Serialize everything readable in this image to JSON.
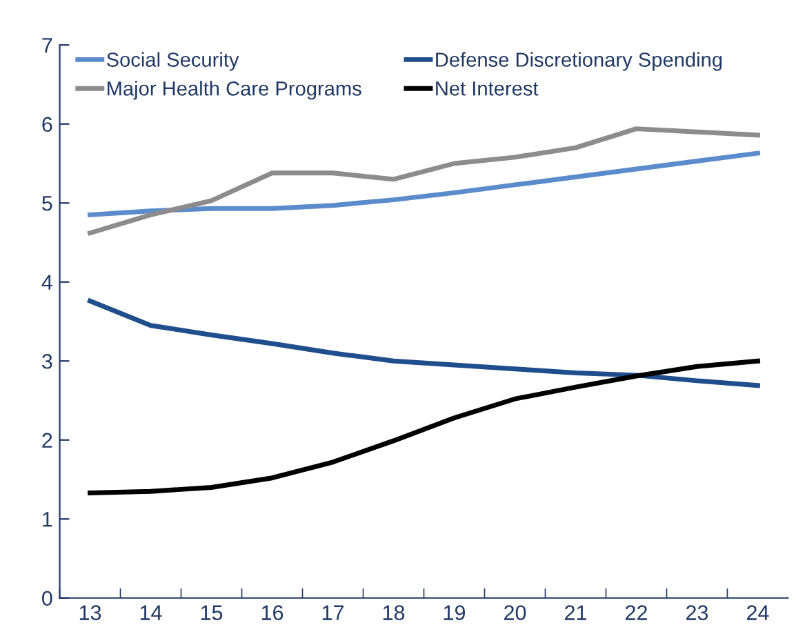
{
  "chart_data": {
    "type": "line",
    "categories": [
      "13",
      "14",
      "15",
      "16",
      "17",
      "18",
      "19",
      "20",
      "21",
      "22",
      "23",
      "24"
    ],
    "series": [
      {
        "name": "Social Security",
        "color": "#5a8ccc",
        "values": [
          4.85,
          4.9,
          4.93,
          4.93,
          4.97,
          5.04,
          5.13,
          5.23,
          5.33,
          5.43,
          5.53,
          5.63
        ]
      },
      {
        "name": "Major Health Care Programs",
        "color": "#8c8c8c",
        "values": [
          4.62,
          4.85,
          5.03,
          5.38,
          5.38,
          5.3,
          5.5,
          5.58,
          5.7,
          5.94,
          5.9,
          5.86
        ]
      },
      {
        "name": "Defense Discretionary Spending",
        "color": "#1f4e8c",
        "values": [
          3.76,
          3.45,
          3.33,
          3.22,
          3.1,
          3.0,
          2.95,
          2.9,
          2.85,
          2.82,
          2.75,
          2.69
        ]
      },
      {
        "name": "Net Interest",
        "color": "#000000",
        "values": [
          1.33,
          1.35,
          1.4,
          1.52,
          1.72,
          1.99,
          2.28,
          2.52,
          2.67,
          2.81,
          2.93,
          3.0
        ]
      }
    ],
    "ylim": [
      0,
      7
    ],
    "yticks": [
      0,
      1,
      2,
      3,
      4,
      5,
      6,
      7
    ],
    "grid": false,
    "legend": "top",
    "marker": "none",
    "line_style": "solid"
  }
}
